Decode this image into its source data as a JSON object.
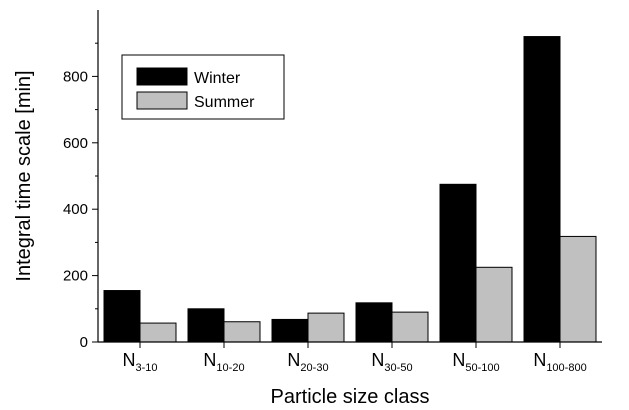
{
  "chart_data": {
    "type": "bar",
    "title": "",
    "xlabel": "Particle size class",
    "ylabel": "Integral time scale [min]",
    "categories": [
      {
        "main": "N",
        "sub": "3-10"
      },
      {
        "main": "N",
        "sub": "10-20"
      },
      {
        "main": "N",
        "sub": "20-30"
      },
      {
        "main": "N",
        "sub": "30-50"
      },
      {
        "main": "N",
        "sub": "50-100"
      },
      {
        "main": "N",
        "sub": "100-800"
      }
    ],
    "series": [
      {
        "name": "Winter",
        "color": "#000000",
        "values": [
          155,
          100,
          68,
          118,
          475,
          920
        ]
      },
      {
        "name": "Summer",
        "color": "#c0c0c0",
        "values": [
          57,
          61,
          87,
          90,
          225,
          318
        ]
      }
    ],
    "yticks": [
      0,
      200,
      400,
      600,
      800
    ],
    "ylim": [
      0,
      1000
    ],
    "legend_position": "top-left",
    "grid": false
  }
}
